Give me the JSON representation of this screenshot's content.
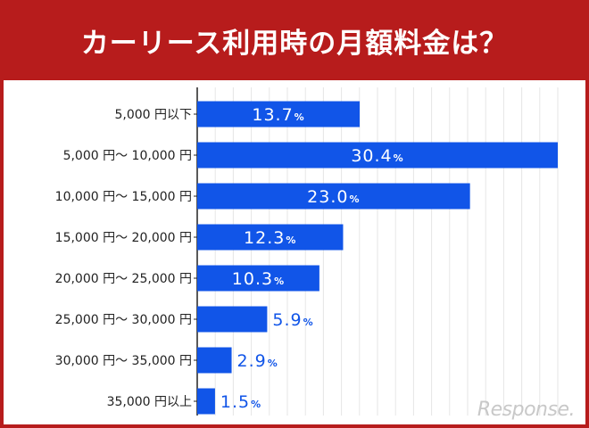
{
  "header": {
    "title": "カーリース利用時の月額料金は？"
  },
  "watermark": {
    "text": "Response."
  },
  "colors": {
    "background": "#b71c1c",
    "bar": "#1155e8",
    "label_inside": "#ffffff",
    "label_outside": "#1155e8",
    "axis": "#222222",
    "grid": "#e6e6e6"
  },
  "chart_data": {
    "type": "bar",
    "orientation": "horizontal",
    "title": "カーリース利用時の月額料金は？",
    "unit_suffix": "%",
    "xlim": [
      0,
      30.4
    ],
    "grid": true,
    "categories": [
      "5,000 円以下",
      "5,000 円～ 10,000 円",
      "10,000 円～ 15,000 円",
      "15,000 円～ 20,000 円",
      "20,000 円～ 25,000 円",
      "25,000 円～ 30,000 円",
      "30,000 円～ 35,000 円",
      "35,000 円以上"
    ],
    "values": [
      13.7,
      30.4,
      23.0,
      12.3,
      10.3,
      5.9,
      2.9,
      1.5
    ],
    "value_labels": [
      "13.7",
      "30.4",
      "23.0",
      "12.3",
      "10.3",
      "5.9",
      "2.9",
      "1.5"
    ]
  }
}
